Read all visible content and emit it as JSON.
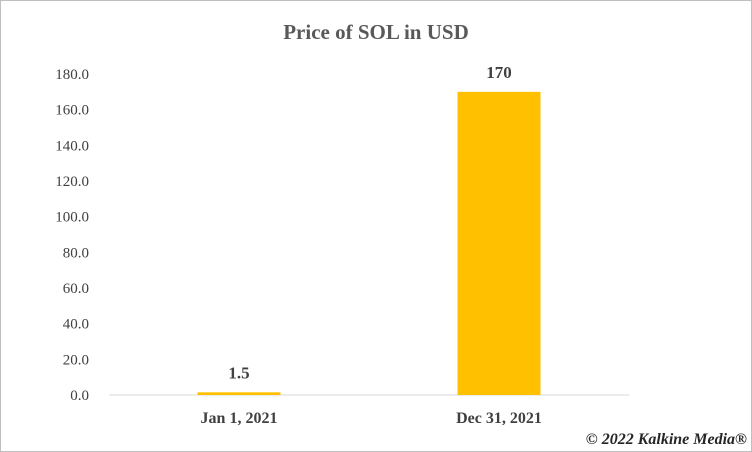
{
  "chart_data": {
    "type": "bar",
    "title": "Price of SOL in USD",
    "categories": [
      "Jan 1, 2021",
      "Dec 31, 2021"
    ],
    "values": [
      1.5,
      170
    ],
    "data_labels": [
      "1.5",
      "170"
    ],
    "ylim": [
      0,
      180
    ],
    "yticks": [
      "0.0",
      "20.0",
      "40.0",
      "60.0",
      "80.0",
      "100.0",
      "120.0",
      "140.0",
      "160.0",
      "180.0"
    ],
    "xlabel": "",
    "ylabel": "",
    "grid": false,
    "bar_color": "#ffc000"
  },
  "watermark": "© 2022 Kalkine Media®"
}
